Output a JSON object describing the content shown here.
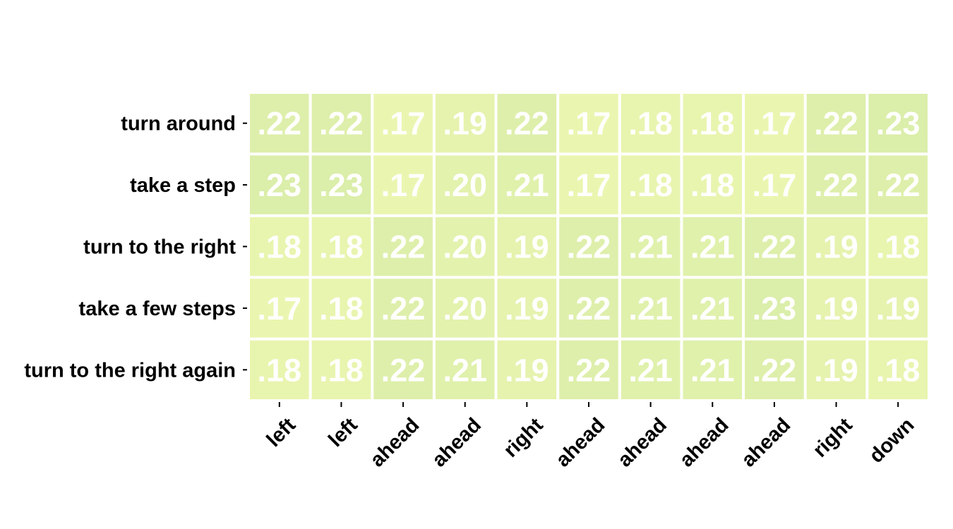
{
  "chart_data": {
    "type": "heatmap",
    "title": "",
    "xlabel": "",
    "ylabel": "",
    "rows": [
      "turn around",
      "take a step",
      "turn to the right",
      "take a few steps",
      "turn to the right again"
    ],
    "columns": [
      "left",
      "left",
      "ahead",
      "ahead",
      "right",
      "ahead",
      "ahead",
      "ahead",
      "ahead",
      "right",
      "down"
    ],
    "values": [
      [
        0.22,
        0.22,
        0.17,
        0.19,
        0.22,
        0.17,
        0.18,
        0.18,
        0.17,
        0.22,
        0.23
      ],
      [
        0.23,
        0.23,
        0.17,
        0.2,
        0.21,
        0.17,
        0.18,
        0.18,
        0.17,
        0.22,
        0.22
      ],
      [
        0.18,
        0.18,
        0.22,
        0.2,
        0.19,
        0.22,
        0.21,
        0.21,
        0.22,
        0.19,
        0.18
      ],
      [
        0.17,
        0.18,
        0.22,
        0.2,
        0.19,
        0.22,
        0.21,
        0.21,
        0.23,
        0.19,
        0.19
      ],
      [
        0.18,
        0.18,
        0.22,
        0.21,
        0.19,
        0.22,
        0.21,
        0.21,
        0.22,
        0.19,
        0.18
      ]
    ],
    "labels": [
      [
        ".22",
        ".22",
        ".17",
        ".19",
        ".22",
        ".17",
        ".18",
        ".18",
        ".17",
        ".22",
        ".23"
      ],
      [
        ".23",
        ".23",
        ".17",
        ".20",
        ".21",
        ".17",
        ".18",
        ".18",
        ".17",
        ".22",
        ".22"
      ],
      [
        ".18",
        ".18",
        ".22",
        ".20",
        ".19",
        ".22",
        ".21",
        ".21",
        ".22",
        ".19",
        ".18"
      ],
      [
        ".17",
        ".18",
        ".22",
        ".20",
        ".19",
        ".22",
        ".21",
        ".21",
        ".23",
        ".19",
        ".19"
      ],
      [
        ".18",
        ".18",
        ".22",
        ".21",
        ".19",
        ".22",
        ".21",
        ".21",
        ".22",
        ".19",
        ".18"
      ]
    ],
    "color_scale": {
      "min_value": 0.17,
      "max_value": 0.23,
      "min_color": "#eaf6b0",
      "max_color": "#dbeeaa"
    },
    "cell_text_color": "#ffffff",
    "grid_line_color": "#ffffff",
    "colorbar": false
  }
}
